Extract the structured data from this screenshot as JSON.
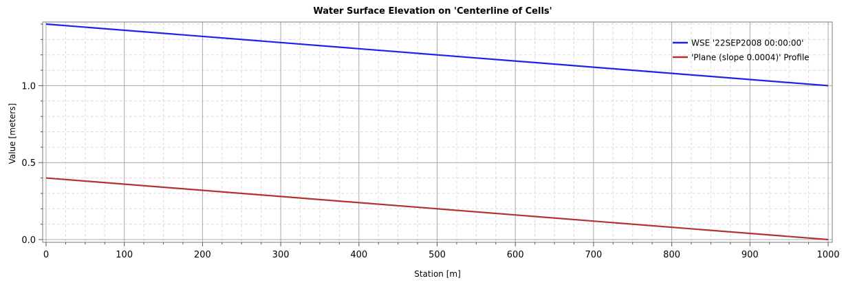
{
  "chart_data": {
    "type": "line",
    "title": "Water Surface Elevation on 'Centerline of Cells'",
    "xlabel": "Station [m]",
    "ylabel": "Value [meters]",
    "xlim": [
      0,
      1000
    ],
    "ylim": [
      0,
      1.4
    ],
    "xticks": [
      0,
      100,
      200,
      300,
      400,
      500,
      600,
      700,
      800,
      900,
      1000
    ],
    "yticks": [
      0.0,
      0.5,
      1.0
    ],
    "ytick_labels": [
      "0.0",
      "0.5",
      "1.0"
    ],
    "grid": true,
    "legend_position": "top-right",
    "series": [
      {
        "name": "WSE '22SEP2008 00:00:00'",
        "color": "#1f1fef",
        "x": [
          0,
          1000
        ],
        "y": [
          1.4,
          1.0
        ]
      },
      {
        "name": "'Plane (slope 0.0004)' Profile",
        "color": "#b23232",
        "x": [
          0,
          1000
        ],
        "y": [
          0.4,
          0.0
        ]
      }
    ]
  }
}
